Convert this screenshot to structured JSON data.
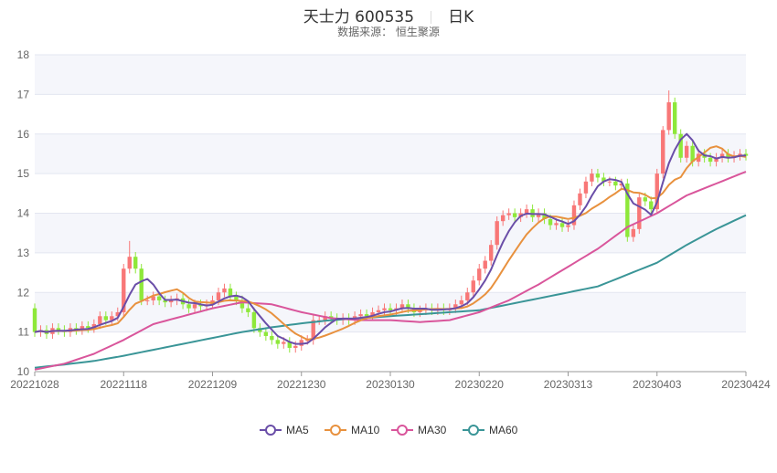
{
  "header": {
    "name": "天士力 600535",
    "period": "日K",
    "source": "数据来源： 恒生聚源"
  },
  "chart_data": {
    "type": "candlestick",
    "title": "天士力 600535 日K",
    "subtitle": "数据来源： 恒生聚源",
    "ylim": [
      10,
      18
    ],
    "yticks": [
      10,
      11,
      12,
      13,
      14,
      15,
      16,
      17,
      18
    ],
    "xtick_labels": [
      "20221028",
      "20221118",
      "20221209",
      "20221230",
      "20230130",
      "20230220",
      "20230313",
      "20230403",
      "20230424"
    ],
    "xtick_every": 15,
    "legend": [
      "MA5",
      "MA10",
      "MA30",
      "MA60"
    ],
    "legend_position": "bottom",
    "colors": {
      "up": "#f87777",
      "down": "#8ee83a",
      "MA5": "#6a4ea8",
      "MA10": "#e8913e",
      "MA30": "#d9559b",
      "MA60": "#3a9597"
    },
    "first_open": 11.6,
    "close": [
      11.0,
      11.05,
      10.95,
      11.1,
      11.05,
      11.0,
      11.1,
      11.05,
      11.15,
      11.1,
      11.2,
      11.4,
      11.3,
      11.4,
      11.5,
      12.6,
      12.9,
      12.6,
      11.8,
      11.8,
      11.9,
      11.8,
      11.75,
      11.8,
      11.85,
      11.7,
      11.6,
      11.7,
      11.65,
      11.7,
      11.8,
      12.0,
      12.1,
      11.9,
      11.8,
      11.6,
      11.5,
      11.1,
      11.0,
      10.9,
      10.8,
      10.7,
      10.75,
      10.6,
      10.65,
      10.8,
      10.8,
      11.3,
      11.3,
      11.4,
      11.35,
      11.3,
      11.35,
      11.3,
      11.4,
      11.45,
      11.4,
      11.5,
      11.55,
      11.6,
      11.55,
      11.6,
      11.7,
      11.6,
      11.5,
      11.55,
      11.6,
      11.55,
      11.6,
      11.55,
      11.6,
      11.7,
      11.8,
      12.0,
      12.3,
      12.6,
      12.8,
      13.2,
      13.8,
      13.95,
      14.0,
      13.9,
      14.0,
      14.1,
      13.9,
      14.0,
      13.85,
      13.7,
      13.75,
      13.65,
      13.7,
      14.2,
      14.5,
      14.8,
      15.0,
      14.9,
      14.8,
      14.8,
      14.7,
      14.75,
      13.4,
      13.6,
      14.4,
      14.3,
      14.1,
      15.0,
      16.1,
      16.8,
      16.0,
      15.4,
      15.7,
      15.3,
      15.5,
      15.4,
      15.3,
      15.4,
      15.5,
      15.4,
      15.45,
      15.5,
      15.45
    ],
    "wick": 0.12,
    "special_highs": {
      "16": 13.3,
      "107": 17.1,
      "106": 16.2
    },
    "ma30_every5": [
      10.05,
      10.2,
      10.45,
      10.8,
      11.2,
      11.4,
      11.6,
      11.75,
      11.7,
      11.5,
      11.35,
      11.3,
      11.3,
      11.25,
      11.3,
      11.5,
      11.8,
      12.2,
      12.65,
      13.1,
      13.65,
      14.0,
      14.45,
      14.75,
      15.05
    ],
    "ma60_every5": [
      10.1,
      10.18,
      10.27,
      10.4,
      10.55,
      10.7,
      10.85,
      11.0,
      11.12,
      11.22,
      11.3,
      11.35,
      11.4,
      11.45,
      11.5,
      11.55,
      11.7,
      11.85,
      12.0,
      12.15,
      12.45,
      12.75,
      13.2,
      13.6,
      13.95
    ]
  }
}
